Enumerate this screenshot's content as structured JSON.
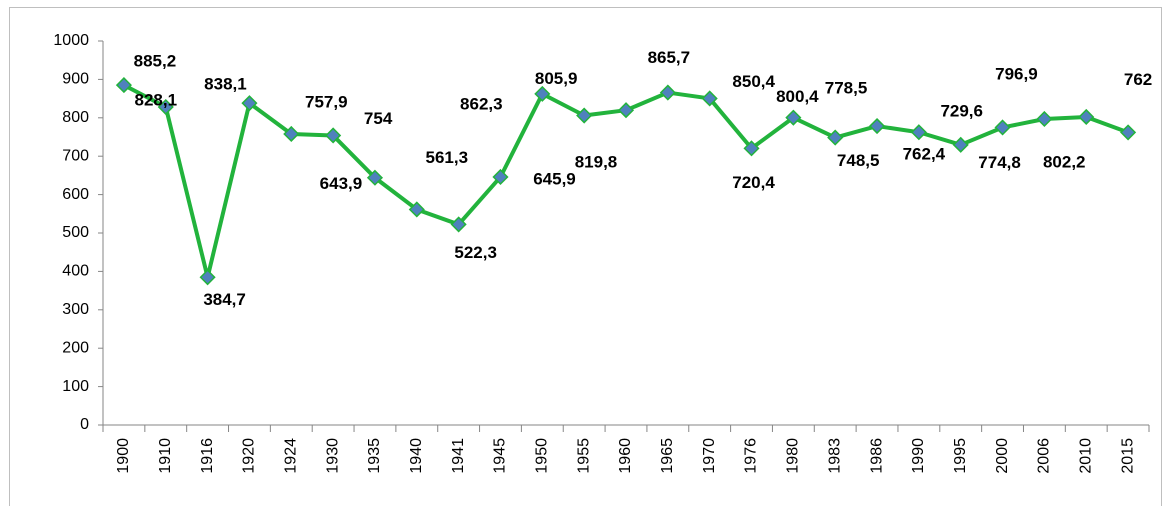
{
  "chart_data": {
    "type": "line",
    "categories": [
      "1900",
      "1910",
      "1916",
      "1920",
      "1924",
      "1930",
      "1935",
      "1940",
      "1941",
      "1945",
      "1950",
      "1955",
      "1960",
      "1965",
      "1970",
      "1976",
      "1980",
      "1983",
      "1986",
      "1990",
      "1995",
      "2000",
      "2006",
      "2010",
      "2015"
    ],
    "series": [
      {
        "color": "#22b33c",
        "marker_color": "#4f81bd",
        "values": [
          885.2,
          828.1,
          384.7,
          838.1,
          757.9,
          754,
          643.9,
          561.3,
          522.3,
          645.9,
          862.3,
          805.9,
          819.8,
          865.7,
          850.4,
          720.4,
          800.4,
          748.5,
          778.5,
          762.4,
          729.6,
          774.8,
          796.9,
          802.2,
          762
        ],
        "value_labels": [
          "885,2",
          "828,1",
          "384,7",
          "838,1",
          "757,9",
          "754",
          "643,9",
          "561,3",
          "522,3",
          "645,9",
          "862,3",
          "805,9",
          "819,8",
          "865,7",
          "850,4",
          "720,4",
          "800,4",
          "748,5",
          "778,5",
          "762,4",
          "729,6",
          "774,8",
          "796,9",
          "802,2",
          "762"
        ]
      }
    ],
    "ylim": [
      0,
      1000
    ],
    "yticks": [
      0,
      100,
      200,
      300,
      400,
      500,
      600,
      700,
      800,
      900,
      1000
    ],
    "grid": false
  }
}
